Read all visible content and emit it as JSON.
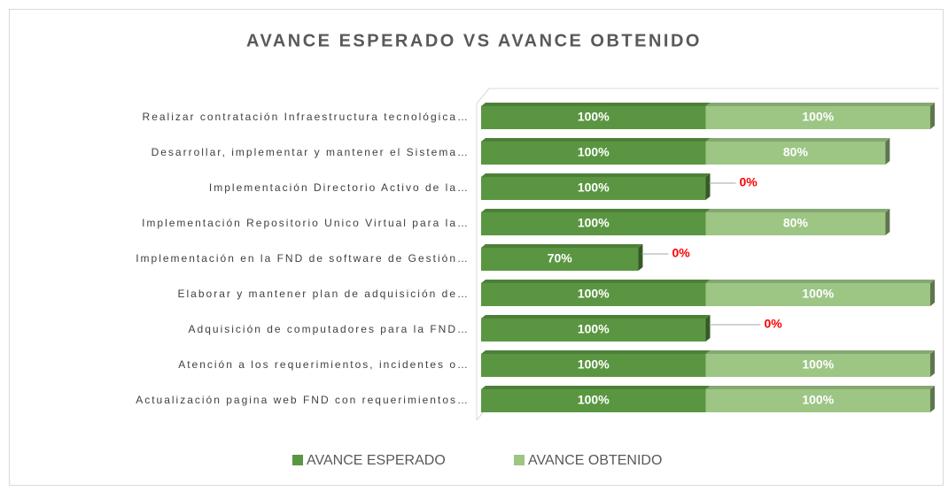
{
  "chart_data": {
    "type": "stacked-bar-horizontal",
    "title": "AVANCE ESPERADO VS AVANCE OBTENIDO",
    "categories": [
      "Realizar contratación Infraestructura tecnológica…",
      "Desarrollar, implementar y mantener el Sistema…",
      "Implementación Directorio Activo de la…",
      "Implementación Repositorio Unico Virtual para la…",
      "Implementación en la FND de software de Gestión…",
      "Elaborar y mantener plan de adquisición de…",
      "Adquisición de computadores para la FND…",
      "Atención a los requerimientos, incidentes o…",
      "Actualización pagina web FND con requerimientos…"
    ],
    "series": [
      {
        "name": "AVANCE ESPERADO",
        "color": "#5a9641",
        "values": [
          100,
          100,
          100,
          100,
          70,
          100,
          100,
          100,
          100
        ],
        "value_labels": [
          "100%",
          "100%",
          "100%",
          "100%",
          "70%",
          "100%",
          "100%",
          "100%",
          "100%"
        ]
      },
      {
        "name": "AVANCE OBTENIDO",
        "color": "#9dc584",
        "values": [
          100,
          80,
          0,
          80,
          0,
          100,
          0,
          100,
          100
        ],
        "value_labels": [
          "100%",
          "80%",
          "0%",
          "80%",
          "0%",
          "100%",
          "0%",
          "100%",
          "100%"
        ]
      }
    ],
    "xlim": [
      0,
      200
    ],
    "legend": "bottom"
  }
}
